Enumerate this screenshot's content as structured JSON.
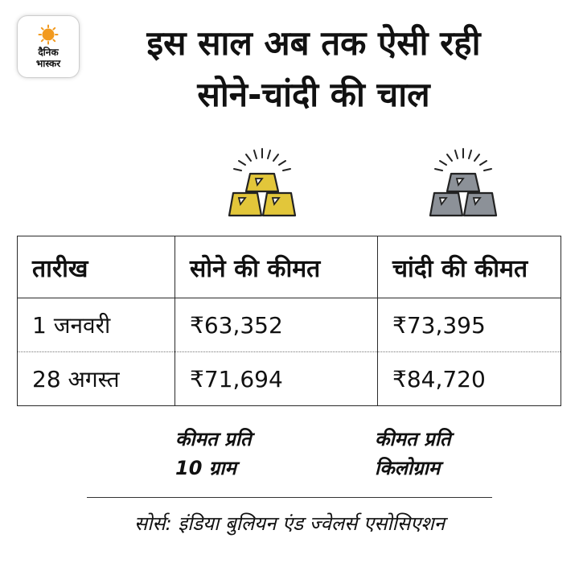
{
  "logo": {
    "line1": "दैनिक",
    "line2": "भास्कर"
  },
  "title": {
    "line1": "इस साल अब तक ऐसी रही",
    "line2": "सोने-चांदी की चाल"
  },
  "icons": {
    "gold": "gold-bars-icon",
    "silver": "silver-bars-icon"
  },
  "colors": {
    "gold": "#E2C63A",
    "silver": "#8C9198",
    "logo_sun": "#F29A1F"
  },
  "table": {
    "headers": [
      "तारीख",
      "सोने की कीमत",
      "चांदी की कीमत"
    ],
    "rows": [
      [
        "1 जनवरी",
        "₹63,352",
        "₹73,395"
      ],
      [
        "28 अगस्त",
        "₹71,694",
        "₹84,720"
      ]
    ]
  },
  "notes": {
    "gold": {
      "line1": "कीमत प्रति",
      "line2": "10 ग्राम"
    },
    "silver": {
      "line1": "कीमत प्रति",
      "line2": "किलोग्राम"
    }
  },
  "source": "सोर्स: इंडिया बुलियन एंड ज्वेलर्स एसोसिएशन"
}
